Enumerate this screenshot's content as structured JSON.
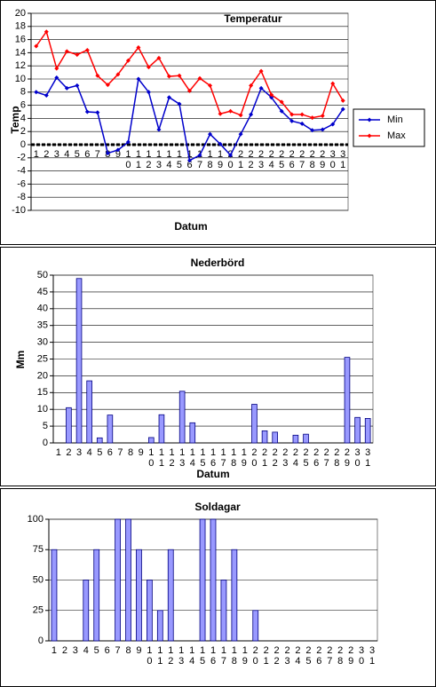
{
  "chart_data": [
    {
      "type": "line",
      "title": "Temperatur",
      "xlabel": "Datum",
      "ylabel": "Temp",
      "categories": [
        "1",
        "2",
        "3",
        "4",
        "5",
        "6",
        "7",
        "8",
        "9",
        "10",
        "11",
        "12",
        "13",
        "14",
        "15",
        "16",
        "17",
        "18",
        "19",
        "20",
        "21",
        "22",
        "23",
        "24",
        "25",
        "26",
        "27",
        "28",
        "29",
        "30",
        "31"
      ],
      "series": [
        {
          "name": "Min",
          "color": "#0000cc",
          "values": [
            8.0,
            7.5,
            10.2,
            8.6,
            9.0,
            5.0,
            4.9,
            -1.3,
            -0.8,
            0.4,
            10.0,
            8.0,
            2.3,
            7.2,
            6.2,
            -2.4,
            -1.6,
            1.6,
            0.1,
            -1.6,
            1.6,
            4.6,
            8.6,
            7.2,
            5.1,
            3.6,
            3.2,
            2.2,
            2.3,
            3.1,
            5.4
          ]
        },
        {
          "name": "Max",
          "color": "#ff0000",
          "values": [
            15.0,
            17.2,
            11.6,
            14.2,
            13.7,
            14.4,
            10.5,
            9.1,
            10.7,
            12.8,
            14.8,
            11.8,
            13.2,
            10.4,
            10.5,
            8.2,
            10.1,
            9.0,
            4.7,
            5.1,
            4.5,
            9.0,
            11.2,
            7.6,
            6.5,
            4.6,
            4.6,
            4.1,
            4.4,
            9.3,
            6.7
          ]
        }
      ],
      "ylim": [
        -10,
        20
      ],
      "yticks": [
        -10,
        -8,
        -6,
        -4,
        -2,
        0,
        2,
        4,
        6,
        8,
        10,
        12,
        14,
        16,
        18,
        20
      ],
      "grid": true,
      "legend": "right"
    },
    {
      "type": "bar",
      "title": "Nederbörd",
      "xlabel": "Datum",
      "ylabel": "Mm",
      "color": "#9999ff",
      "categories": [
        "1",
        "2",
        "3",
        "4",
        "5",
        "6",
        "7",
        "8",
        "9",
        "10",
        "11",
        "12",
        "13",
        "14",
        "15",
        "16",
        "17",
        "18",
        "19",
        "20",
        "21",
        "22",
        "23",
        "24",
        "25",
        "26",
        "27",
        "28",
        "29",
        "30",
        "31"
      ],
      "values": [
        0,
        10.5,
        49,
        18.5,
        1.5,
        8.3,
        0,
        0,
        0,
        1.6,
        8.4,
        0,
        15.4,
        6,
        0,
        0,
        0,
        0,
        0,
        11.5,
        3.6,
        3.2,
        0,
        2.3,
        2.6,
        0,
        0,
        0,
        25.5,
        7.6,
        7.3
      ],
      "ylim": [
        0,
        50
      ],
      "yticks": [
        0,
        5,
        10,
        15,
        20,
        25,
        30,
        35,
        40,
        45,
        50
      ],
      "grid": true
    },
    {
      "type": "bar",
      "title": "Soldagar",
      "color": "#9999ff",
      "categories": [
        "1",
        "2",
        "3",
        "4",
        "5",
        "6",
        "7",
        "8",
        "9",
        "10",
        "11",
        "12",
        "13",
        "14",
        "15",
        "16",
        "17",
        "18",
        "19",
        "20",
        "21",
        "22",
        "23",
        "24",
        "25",
        "26",
        "27",
        "28",
        "29",
        "30",
        "31"
      ],
      "values": [
        75,
        0,
        0,
        50,
        75,
        0,
        100,
        100,
        75,
        50,
        25,
        75,
        0,
        0,
        100,
        100,
        50,
        75,
        0,
        25,
        0,
        0,
        0,
        0,
        0,
        0,
        0,
        0,
        0,
        0,
        0
      ],
      "ylim": [
        0,
        100
      ],
      "yticks": [
        0,
        25,
        50,
        75,
        100
      ],
      "grid": true
    }
  ]
}
